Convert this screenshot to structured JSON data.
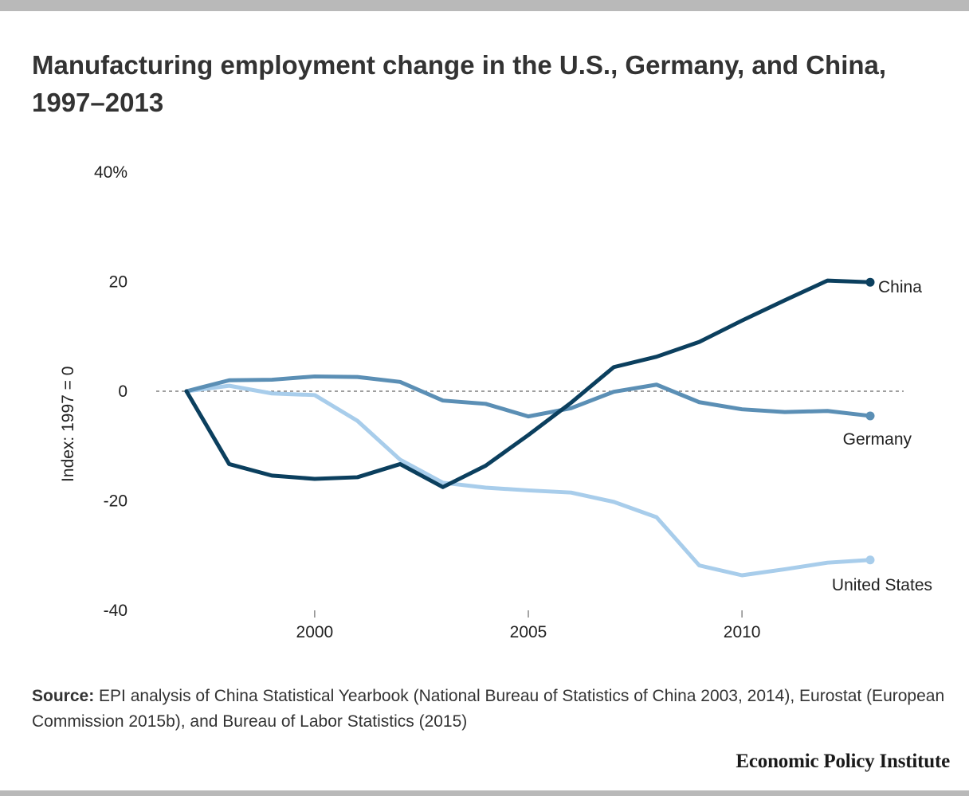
{
  "title": "Manufacturing employment change in the U.S., Germany, and China, 1997–2013",
  "source": {
    "label": "Source:",
    "text": " EPI analysis of China Statistical Yearbook (National Bureau of Statistics of China 2003, 2014), Eurostat (European Commission 2015b), and Bureau of Labor Statistics (2015)"
  },
  "publisher": "Economic Policy Institute",
  "chart_data": {
    "type": "line",
    "title": "Manufacturing employment change in the U.S., Germany, and China, 1997–2013",
    "ylabel": "Index: 1997 = 0",
    "xlabel": "",
    "x": [
      1997,
      1998,
      1999,
      2000,
      2001,
      2002,
      2003,
      2004,
      2005,
      2006,
      2007,
      2008,
      2009,
      2010,
      2011,
      2012,
      2013
    ],
    "xlim": [
      1994,
      2013.5
    ],
    "ylim": [
      -40,
      40
    ],
    "x_ticks": [
      2000,
      2005,
      2010
    ],
    "x_tick_labels": [
      "2000",
      "2005",
      "2010"
    ],
    "y_ticks": [
      40,
      20,
      0,
      -20,
      -40
    ],
    "y_tick_labels": [
      "40%",
      "20",
      "0",
      "-20",
      "-40"
    ],
    "grid": false,
    "zero_line": "dashed",
    "legend": "direct labels at line ends",
    "series": [
      {
        "name": "China",
        "color": "#0b3f5e",
        "values": [
          0,
          -13.3,
          -15.4,
          -16.0,
          -15.7,
          -13.3,
          -17.5,
          -13.6,
          -8.0,
          -2.1,
          4.4,
          6.3,
          9.0,
          12.9,
          16.6,
          20.2,
          19.9
        ]
      },
      {
        "name": "Germany",
        "color": "#5b8fb5",
        "values": [
          0,
          2.0,
          2.1,
          2.7,
          2.6,
          1.7,
          -1.7,
          -2.3,
          -4.6,
          -3.1,
          -0.1,
          1.2,
          -2.0,
          -3.3,
          -3.8,
          -3.6,
          -4.5
        ]
      },
      {
        "name": "United States",
        "color": "#a8cdeb",
        "values": [
          0,
          1.0,
          -0.4,
          -0.7,
          -5.4,
          -12.5,
          -16.7,
          -17.6,
          -18.1,
          -18.5,
          -20.2,
          -23.0,
          -31.8,
          -33.6,
          -32.5,
          -31.3,
          -30.8
        ]
      }
    ]
  }
}
